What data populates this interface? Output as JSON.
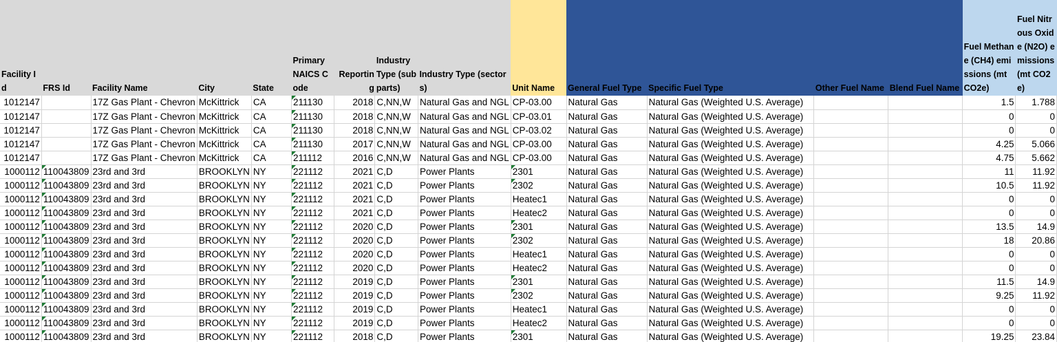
{
  "headers": [
    "Facility Id",
    "FRS Id",
    "Facility Name",
    "City",
    "State",
    "Primary NAICS Code",
    "Reporting",
    "Industry Type (subparts)",
    "Industry Type (sectors)",
    "Unit Name",
    "General Fuel Type",
    "Specific Fuel Type",
    "Other Fuel Name",
    "Blend Fuel Name",
    "Fuel Methane (CH4) emissions (mt CO2e)",
    "Fuel Nitrous Oxide (N2O) emissions (mt CO2e)"
  ],
  "rows": [
    [
      "1012147",
      "",
      "17Z Gas Plant - Chevron",
      "McKittrick",
      "CA",
      "211130",
      "2018",
      "C,NN,W",
      "Natural Gas and NGL",
      "CP-03.00",
      "Natural Gas",
      "Natural Gas (Weighted U.S. Average)",
      "",
      "",
      "1.5",
      "1.788"
    ],
    [
      "1012147",
      "",
      "17Z Gas Plant - Chevron",
      "McKittrick",
      "CA",
      "211130",
      "2018",
      "C,NN,W",
      "Natural Gas and NGL",
      "CP-03.01",
      "Natural Gas",
      "Natural Gas (Weighted U.S. Average)",
      "",
      "",
      "0",
      "0"
    ],
    [
      "1012147",
      "",
      "17Z Gas Plant - Chevron",
      "McKittrick",
      "CA",
      "211130",
      "2018",
      "C,NN,W",
      "Natural Gas and NGL",
      "CP-03.02",
      "Natural Gas",
      "Natural Gas (Weighted U.S. Average)",
      "",
      "",
      "0",
      "0"
    ],
    [
      "1012147",
      "",
      "17Z Gas Plant - Chevron",
      "McKittrick",
      "CA",
      "211130",
      "2017",
      "C,NN,W",
      "Natural Gas and NGL",
      "CP-03.00",
      "Natural Gas",
      "Natural Gas (Weighted U.S. Average)",
      "",
      "",
      "4.25",
      "5.066"
    ],
    [
      "1012147",
      "",
      "17Z Gas Plant - Chevron",
      "McKittrick",
      "CA",
      "211112",
      "2016",
      "C,NN,W",
      "Natural Gas and NGL",
      "CP-03.00",
      "Natural Gas",
      "Natural Gas (Weighted U.S. Average)",
      "",
      "",
      "4.75",
      "5.662"
    ],
    [
      "1000112",
      "110043809",
      "23rd and 3rd",
      "BROOKLYN",
      "NY",
      "221112",
      "2021",
      "C,D",
      "Power Plants",
      "2301",
      "Natural Gas",
      "Natural Gas (Weighted U.S. Average)",
      "",
      "",
      "11",
      "11.92"
    ],
    [
      "1000112",
      "110043809",
      "23rd and 3rd",
      "BROOKLYN",
      "NY",
      "221112",
      "2021",
      "C,D",
      "Power Plants",
      "2302",
      "Natural Gas",
      "Natural Gas (Weighted U.S. Average)",
      "",
      "",
      "10.5",
      "11.92"
    ],
    [
      "1000112",
      "110043809",
      "23rd and 3rd",
      "BROOKLYN",
      "NY",
      "221112",
      "2021",
      "C,D",
      "Power Plants",
      "Heatec1",
      "Natural Gas",
      "Natural Gas (Weighted U.S. Average)",
      "",
      "",
      "0",
      "0"
    ],
    [
      "1000112",
      "110043809",
      "23rd and 3rd",
      "BROOKLYN",
      "NY",
      "221112",
      "2021",
      "C,D",
      "Power Plants",
      "Heatec2",
      "Natural Gas",
      "Natural Gas (Weighted U.S. Average)",
      "",
      "",
      "0",
      "0"
    ],
    [
      "1000112",
      "110043809",
      "23rd and 3rd",
      "BROOKLYN",
      "NY",
      "221112",
      "2020",
      "C,D",
      "Power Plants",
      "2301",
      "Natural Gas",
      "Natural Gas (Weighted U.S. Average)",
      "",
      "",
      "13.5",
      "14.9"
    ],
    [
      "1000112",
      "110043809",
      "23rd and 3rd",
      "BROOKLYN",
      "NY",
      "221112",
      "2020",
      "C,D",
      "Power Plants",
      "2302",
      "Natural Gas",
      "Natural Gas (Weighted U.S. Average)",
      "",
      "",
      "18",
      "20.86"
    ],
    [
      "1000112",
      "110043809",
      "23rd and 3rd",
      "BROOKLYN",
      "NY",
      "221112",
      "2020",
      "C,D",
      "Power Plants",
      "Heatec1",
      "Natural Gas",
      "Natural Gas (Weighted U.S. Average)",
      "",
      "",
      "0",
      "0"
    ],
    [
      "1000112",
      "110043809",
      "23rd and 3rd",
      "BROOKLYN",
      "NY",
      "221112",
      "2020",
      "C,D",
      "Power Plants",
      "Heatec2",
      "Natural Gas",
      "Natural Gas (Weighted U.S. Average)",
      "",
      "",
      "0",
      "0"
    ],
    [
      "1000112",
      "110043809",
      "23rd and 3rd",
      "BROOKLYN",
      "NY",
      "221112",
      "2019",
      "C,D",
      "Power Plants",
      "2301",
      "Natural Gas",
      "Natural Gas (Weighted U.S. Average)",
      "",
      "",
      "11.5",
      "14.9"
    ],
    [
      "1000112",
      "110043809",
      "23rd and 3rd",
      "BROOKLYN",
      "NY",
      "221112",
      "2019",
      "C,D",
      "Power Plants",
      "2302",
      "Natural Gas",
      "Natural Gas (Weighted U.S. Average)",
      "",
      "",
      "9.25",
      "11.92"
    ],
    [
      "1000112",
      "110043809",
      "23rd and 3rd",
      "BROOKLYN",
      "NY",
      "221112",
      "2019",
      "C,D",
      "Power Plants",
      "Heatec1",
      "Natural Gas",
      "Natural Gas (Weighted U.S. Average)",
      "",
      "",
      "0",
      "0"
    ],
    [
      "1000112",
      "110043809",
      "23rd and 3rd",
      "BROOKLYN",
      "NY",
      "221112",
      "2019",
      "C,D",
      "Power Plants",
      "Heatec2",
      "Natural Gas",
      "Natural Gas (Weighted U.S. Average)",
      "",
      "",
      "0",
      "0"
    ],
    [
      "1000112",
      "110043809",
      "23rd and 3rd",
      "BROOKLYN",
      "NY",
      "221112",
      "2018",
      "C,D",
      "Power Plants",
      "2301",
      "Natural Gas",
      "Natural Gas (Weighted U.S. Average)",
      "",
      "",
      "19.25",
      "23.84"
    ]
  ]
}
